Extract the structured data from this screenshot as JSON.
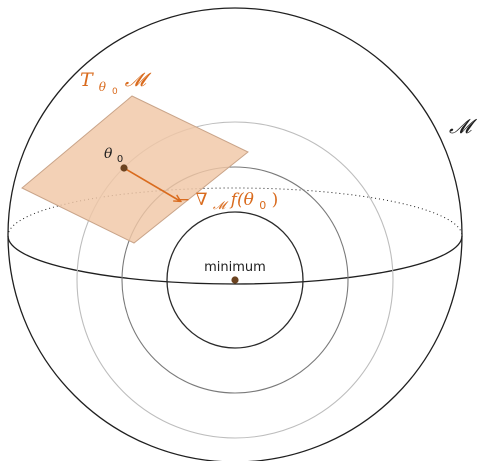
{
  "labels": {
    "manifold": "𝓜",
    "tangent_T": "T",
    "tangent_sub_theta": "θ",
    "tangent_sub_zero": "0",
    "tangent_M": "𝓜",
    "point_theta": "θ",
    "point_sub": "0",
    "gradient_prefix": "− ∇",
    "gradient_sub": "𝓜",
    "gradient_suffix": " f(θ",
    "gradient_sub2": "0",
    "gradient_close": ")",
    "minimum": "minimum"
  },
  "colors": {
    "accent": "#d96b1e",
    "plane_fill": "#f0c7a6",
    "plane_stroke": "#c9a489",
    "point": "#6b4320",
    "sphere": "#1f1f1f",
    "contour_light": "#bdbdbd",
    "contour_mid": "#7a7a7a",
    "contour_dark": "#2a2a2a"
  }
}
